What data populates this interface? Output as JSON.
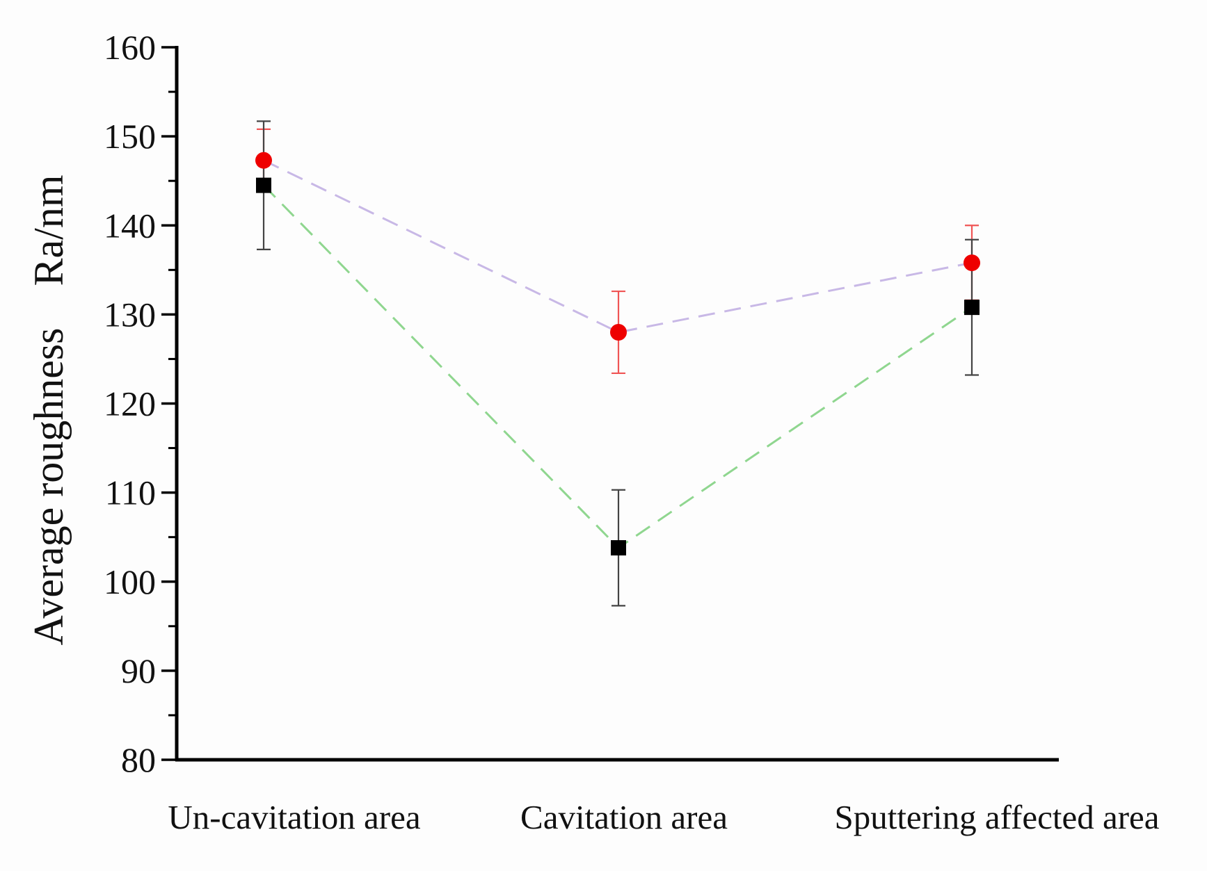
{
  "chart_data": {
    "type": "scatter",
    "title": "",
    "xlabel": "",
    "ylabel": "Average roughness    Ra/nm",
    "categories": [
      "Un-cavitation area",
      "Cavitation area",
      "Sputtering affected area"
    ],
    "ylim": [
      80,
      160
    ],
    "yticks": [
      80,
      90,
      100,
      110,
      120,
      130,
      140,
      150,
      160
    ],
    "ytick_labels": [
      "80",
      "90",
      "100",
      "110",
      "120",
      "130",
      "140",
      "150",
      "160"
    ],
    "grid": false,
    "legend": "none",
    "series": [
      {
        "name": "Series 1 (black squares)",
        "marker": "square",
        "marker_color": "#000000",
        "line_color": "#8fd68f",
        "line_style": "dashed",
        "values": [
          144.5,
          103.8,
          130.8
        ],
        "errors": [
          7.2,
          6.5,
          7.6
        ]
      },
      {
        "name": "Series 2 (red circles)",
        "marker": "circle",
        "marker_color": "#ee0000",
        "line_color": "#c8b8e6",
        "line_style": "dashed",
        "values": [
          147.3,
          128.0,
          135.8
        ],
        "errors": [
          3.5,
          4.6,
          4.2
        ]
      }
    ]
  }
}
